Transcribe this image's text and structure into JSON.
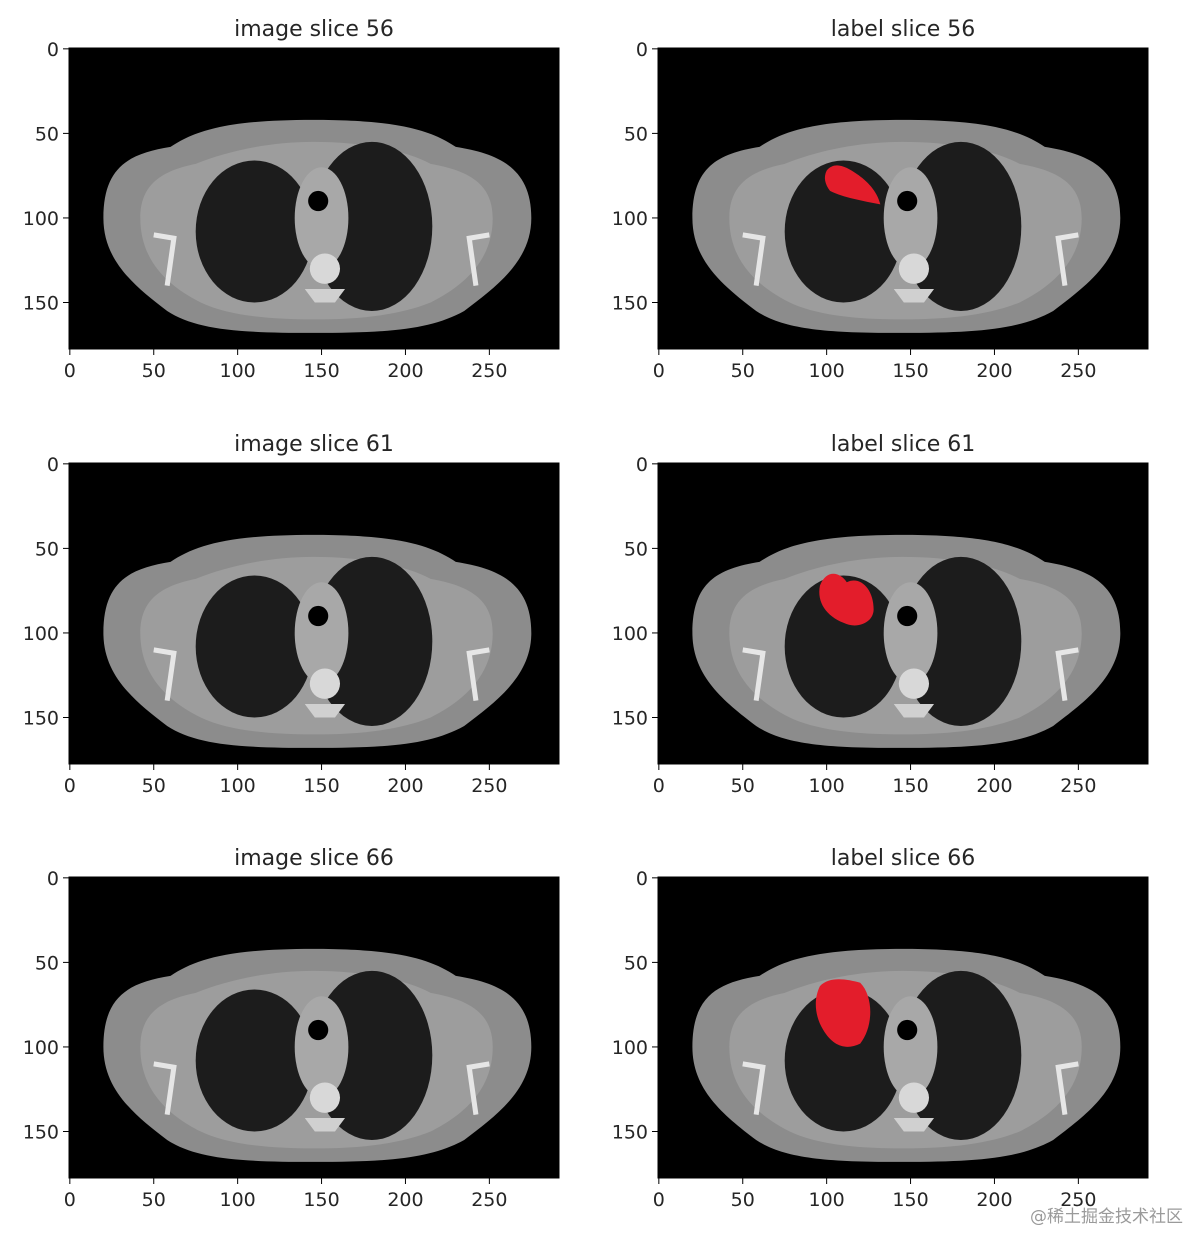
{
  "chart_data": [
    {
      "type": "image",
      "title": "image slice 56",
      "xlim": [
        -0.5,
        291.5
      ],
      "ylim": [
        177.5,
        -0.5
      ],
      "xticks": [
        0,
        50,
        100,
        150,
        200,
        250
      ],
      "yticks": [
        0,
        50,
        100,
        150
      ]
    },
    {
      "type": "image",
      "title": "label slice 56",
      "xlim": [
        -0.5,
        291.5
      ],
      "ylim": [
        177.5,
        -0.5
      ],
      "xticks": [
        0,
        50,
        100,
        150,
        200,
        250
      ],
      "yticks": [
        0,
        50,
        100,
        150
      ]
    },
    {
      "type": "image",
      "title": "image slice 61",
      "xlim": [
        -0.5,
        291.5
      ],
      "ylim": [
        177.5,
        -0.5
      ],
      "xticks": [
        0,
        50,
        100,
        150,
        200,
        250
      ],
      "yticks": [
        0,
        50,
        100,
        150
      ]
    },
    {
      "type": "image",
      "title": "label slice 61",
      "xlim": [
        -0.5,
        291.5
      ],
      "ylim": [
        177.5,
        -0.5
      ],
      "xticks": [
        0,
        50,
        100,
        150,
        200,
        250
      ],
      "yticks": [
        0,
        50,
        100,
        150
      ]
    },
    {
      "type": "image",
      "title": "image slice 66",
      "xlim": [
        -0.5,
        291.5
      ],
      "ylim": [
        177.5,
        -0.5
      ],
      "xticks": [
        0,
        50,
        100,
        150,
        200,
        250
      ],
      "yticks": [
        0,
        50,
        100,
        150
      ]
    },
    {
      "type": "image",
      "title": "label slice 66",
      "xlim": [
        -0.5,
        291.5
      ],
      "ylim": [
        177.5,
        -0.5
      ],
      "xticks": [
        0,
        50,
        100,
        150,
        200,
        250
      ],
      "yticks": [
        0,
        50,
        100,
        150
      ]
    }
  ],
  "watermark": "@稀土掘金技术社区"
}
